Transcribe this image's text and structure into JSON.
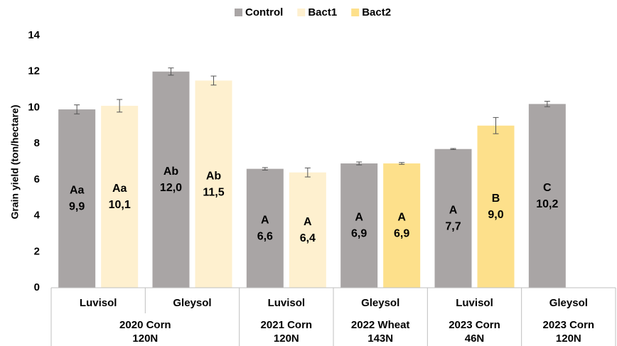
{
  "chart_data": {
    "type": "bar",
    "y_label": "Grain yield (ton/hectare)",
    "categories": [
      "Luvisol",
      "Gleysol",
      "Luvisol",
      "Gleysol",
      "Luvisol",
      "Gleysol"
    ],
    "group_labels": [
      [
        "2020 Corn",
        "120N"
      ],
      null,
      [
        "2021 Corn",
        "120N"
      ],
      [
        "2022 Wheat",
        "143N"
      ],
      [
        "2023 Corn",
        "46N"
      ],
      [
        "2023 Corn",
        "120N"
      ]
    ],
    "series": [
      {
        "name": "Control",
        "color": "#a9a5a5",
        "values": [
          9.9,
          12.0,
          6.6,
          6.9,
          7.7,
          10.2
        ],
        "value_labels": [
          "9,9",
          "12,0",
          "6,6",
          "6,9",
          "7,7",
          "10,2"
        ],
        "letters": [
          "Aa",
          "Ab",
          "A",
          "A",
          "A",
          "C"
        ],
        "errors": [
          0.25,
          0.2,
          0.07,
          0.08,
          0.03,
          0.15
        ]
      },
      {
        "name": "Bact1",
        "color": "#fef0cf",
        "values": [
          10.1,
          11.5,
          6.4,
          null,
          null,
          null
        ],
        "value_labels": [
          "10,1",
          "11,5",
          "6,4",
          null,
          null,
          null
        ],
        "letters": [
          "Aa",
          "Ab",
          "A",
          null,
          null,
          null
        ],
        "errors": [
          0.35,
          0.25,
          0.25,
          null,
          null,
          null
        ]
      },
      {
        "name": "Bact2",
        "color": "#fde08b",
        "values": [
          null,
          null,
          null,
          6.9,
          9.0,
          null
        ],
        "value_labels": [
          null,
          null,
          null,
          "6,9",
          "9,0",
          null
        ],
        "letters": [
          null,
          null,
          null,
          "A",
          "B",
          null
        ],
        "errors": [
          null,
          null,
          null,
          0.05,
          0.45,
          null
        ]
      }
    ],
    "ylim": [
      0,
      14
    ],
    "yticks": [
      0,
      2,
      4,
      6,
      8,
      10,
      12,
      14
    ],
    "legend": "top"
  }
}
